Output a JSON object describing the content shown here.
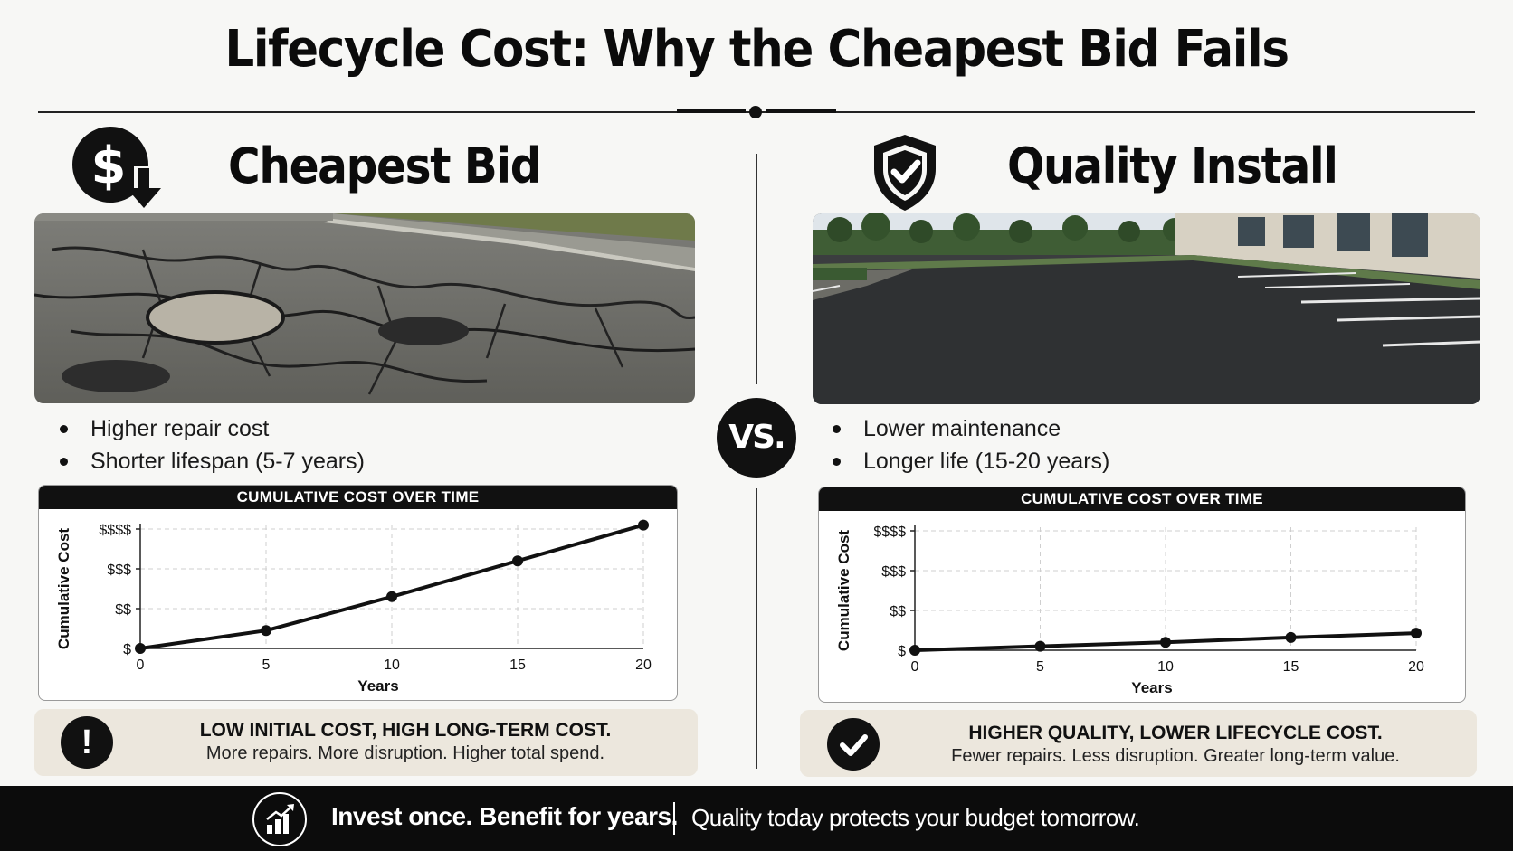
{
  "title": "Lifecycle Cost: Why the Cheapest Bid Fails",
  "left": {
    "heading": "Cheapest Bid",
    "icon": "dollar-down-icon",
    "photo": "cracked-asphalt-photo",
    "bullets": [
      "Higher repair cost",
      "Shorter lifespan (5-7 years)"
    ],
    "callout": {
      "icon": "exclamation-icon",
      "title": "LOW INITIAL COST, HIGH LONG-TERM COST.",
      "subtitle": "More repairs. More disruption. Higher total spend."
    }
  },
  "vs_label": "VS.",
  "right": {
    "heading": "Quality Install",
    "icon": "shield-check-icon",
    "photo": "fresh-asphalt-parking-lot-photo",
    "bullets": [
      "Lower maintenance",
      "Longer life (15-20 years)"
    ],
    "callout": {
      "icon": "check-icon",
      "title": "HIGHER QUALITY, LOWER LIFECYCLE COST.",
      "subtitle": "Fewer repairs. Less disruption. Greater long-term value."
    }
  },
  "chart_data": [
    {
      "type": "line",
      "title": "CUMULATIVE COST OVER TIME",
      "xlabel": "Years",
      "ylabel": "Cumulative Cost",
      "x": [
        0,
        5,
        10,
        15,
        20
      ],
      "y": [
        0,
        0.45,
        1.3,
        2.2,
        3.1
      ],
      "xticks": [
        "0",
        "5",
        "10",
        "15",
        "20"
      ],
      "yticks": [
        "$",
        "$$",
        "$$$",
        "$$$$"
      ],
      "xlim": [
        0,
        20
      ],
      "ylim": [
        0,
        3
      ],
      "grid": true
    },
    {
      "type": "line",
      "title": "CUMULATIVE COST OVER TIME",
      "xlabel": "Years",
      "ylabel": "Cumulative Cost",
      "x": [
        0,
        5,
        10,
        15,
        20
      ],
      "y": [
        0,
        0.1,
        0.2,
        0.32,
        0.43
      ],
      "xticks": [
        "0",
        "5",
        "10",
        "15",
        "20"
      ],
      "yticks": [
        "$",
        "$$",
        "$$$",
        "$$$$"
      ],
      "xlim": [
        0,
        20
      ],
      "ylim": [
        0,
        3
      ],
      "grid": true
    }
  ],
  "footer": {
    "icon": "growth-chart-icon",
    "strong": "Invest once. Benefit for years.",
    "rest": "Quality today protects your budget tomorrow."
  },
  "colors": {
    "ink": "#111111",
    "callout_bg": "#ece7dd",
    "footer_bg": "#0c0c0c"
  }
}
